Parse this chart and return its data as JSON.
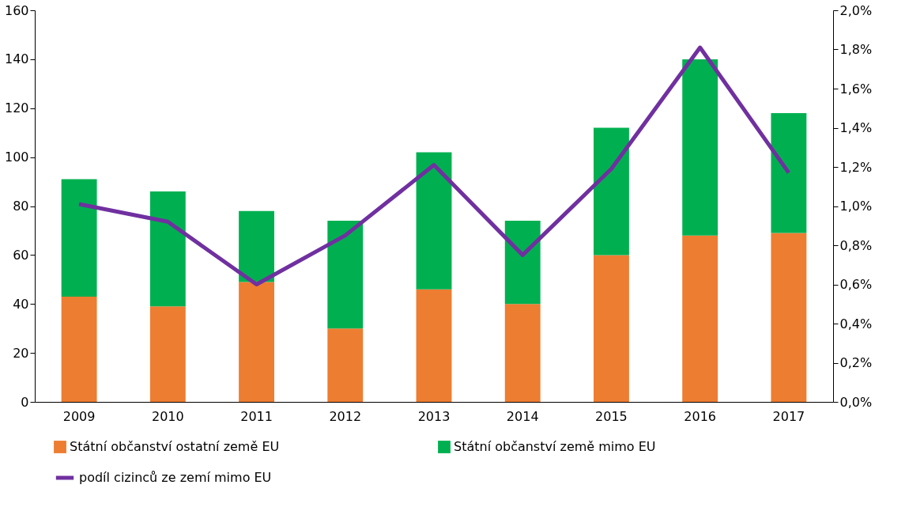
{
  "chart_data": {
    "type": "bar",
    "stacked": true,
    "legend": "bottom",
    "grid": false,
    "categories": [
      "2009",
      "2010",
      "2011",
      "2012",
      "2013",
      "2014",
      "2015",
      "2016",
      "2017"
    ],
    "series": [
      {
        "name": "Státní občanství ostatní země EU",
        "color": "#ed7d31",
        "values": [
          43,
          39,
          49,
          30,
          46,
          40,
          60,
          68,
          69
        ]
      },
      {
        "name": "Státní občanství země mimo EU",
        "color": "#00b050",
        "values": [
          48,
          47,
          29,
          44,
          56,
          34,
          52,
          72,
          49
        ]
      },
      {
        "name": "podíl cizinců ze zemí mimo EU",
        "type": "line",
        "axis": "y2",
        "color": "#7030a0",
        "line_style": "solid",
        "marker": "none",
        "values": [
          1.01,
          0.92,
          0.6,
          0.85,
          1.21,
          0.75,
          1.19,
          1.81,
          1.17
        ]
      }
    ],
    "ylim": [
      0,
      160
    ],
    "yticks": [
      0,
      20,
      40,
      60,
      80,
      100,
      120,
      140,
      160
    ],
    "y2lim": [
      0,
      2.0
    ],
    "y2ticks": [
      {
        "value": 0,
        "label": "0,0%"
      },
      {
        "value": 0.2,
        "label": "0,2%"
      },
      {
        "value": 0.4,
        "label": "0,4%"
      },
      {
        "value": 0.6,
        "label": "0,6%"
      },
      {
        "value": 0.8,
        "label": "0,8%"
      },
      {
        "value": 1.0,
        "label": "1,0%"
      },
      {
        "value": 1.2,
        "label": "1,2%"
      },
      {
        "value": 1.4,
        "label": "1,4%"
      },
      {
        "value": 1.6,
        "label": "1,6%"
      },
      {
        "value": 1.8,
        "label": "1,8%"
      },
      {
        "value": 2.0,
        "label": "2,0%"
      }
    ]
  }
}
